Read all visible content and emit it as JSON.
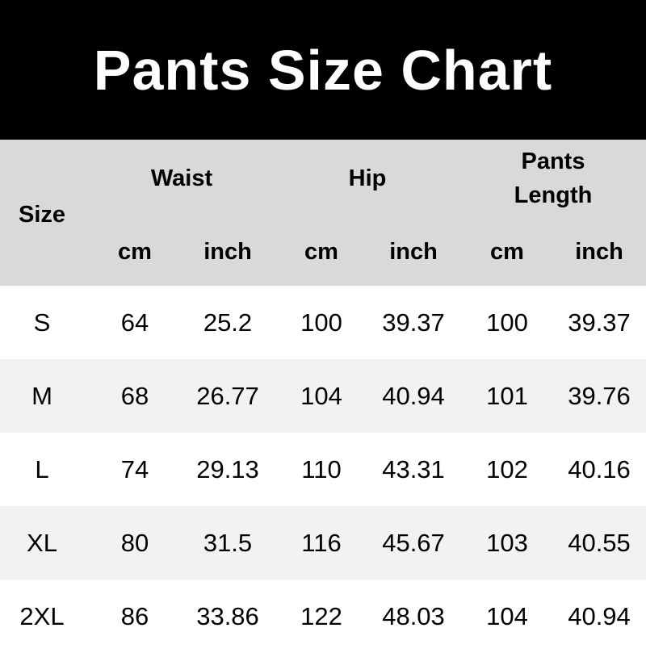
{
  "chart_data": {
    "type": "table",
    "title": "Pants Size Chart",
    "size_header": "Size",
    "groups": [
      "Waist",
      "Hip",
      "Pants Length"
    ],
    "units": [
      "cm",
      "inch",
      "cm",
      "inch",
      "cm",
      "inch"
    ],
    "rows": [
      [
        "S",
        "64",
        "25.2",
        "100",
        "39.37",
        "100",
        "39.37"
      ],
      [
        "M",
        "68",
        "26.77",
        "104",
        "40.94",
        "101",
        "39.76"
      ],
      [
        "L",
        "74",
        "29.13",
        "110",
        "43.31",
        "102",
        "40.16"
      ],
      [
        "XL",
        "80",
        "31.5",
        "116",
        "45.67",
        "103",
        "40.55"
      ],
      [
        "2XL",
        "86",
        "33.86",
        "122",
        "48.03",
        "104",
        "40.94"
      ]
    ],
    "colors": {
      "title_bg": "#000000",
      "header_bg": "#d9d9d9",
      "band_bg": "#f2f2f2"
    }
  }
}
